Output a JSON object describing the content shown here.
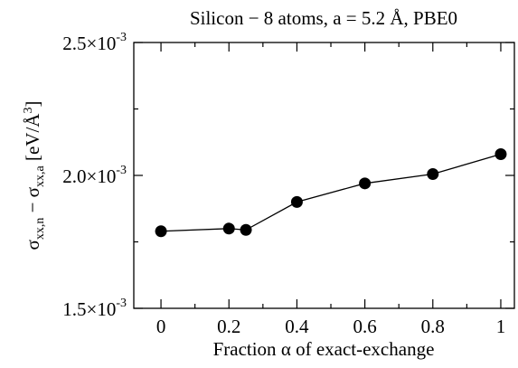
{
  "chart_data": {
    "type": "scatter",
    "title": "Silicon − 8 atoms, a = 5.2 Å, PBE0",
    "xlabel": {
      "prefix": "Fraction ",
      "symbol": "α",
      "suffix": " of exact-exchange"
    },
    "ylabel": {
      "sigma": "σ",
      "sub1": "xx,n",
      "minus": " − ",
      "sub2": "xx,a",
      "unit_open": " [eV/",
      "angstrom": "Å",
      "cube": "3",
      "unit_close": "]"
    },
    "xlim": [
      -0.08,
      1.04
    ],
    "ylim": [
      0.0015,
      0.0025
    ],
    "x_ticks": [
      {
        "value": 0,
        "label": "0"
      },
      {
        "value": 0.2,
        "label": "0.2"
      },
      {
        "value": 0.4,
        "label": "0.4"
      },
      {
        "value": 0.6,
        "label": "0.6"
      },
      {
        "value": 0.8,
        "label": "0.8"
      },
      {
        "value": 1,
        "label": "1"
      }
    ],
    "y_ticks": [
      {
        "value": 0.0015,
        "mantissa": "1.5×10",
        "exp": "-3"
      },
      {
        "value": 0.002,
        "mantissa": "2.0×10",
        "exp": "-3"
      },
      {
        "value": 0.0025,
        "mantissa": "2.5×10",
        "exp": "-3"
      }
    ],
    "series": [
      {
        "x": [
          0,
          0.2,
          0.25,
          0.4,
          0.6,
          0.8,
          1.0
        ],
        "y": [
          0.00179,
          0.0018,
          0.001795,
          0.0019,
          0.00197,
          0.002005,
          0.00208
        ]
      }
    ],
    "grid": false,
    "colors": {
      "line": "#000000",
      "marker": "#000000"
    }
  }
}
